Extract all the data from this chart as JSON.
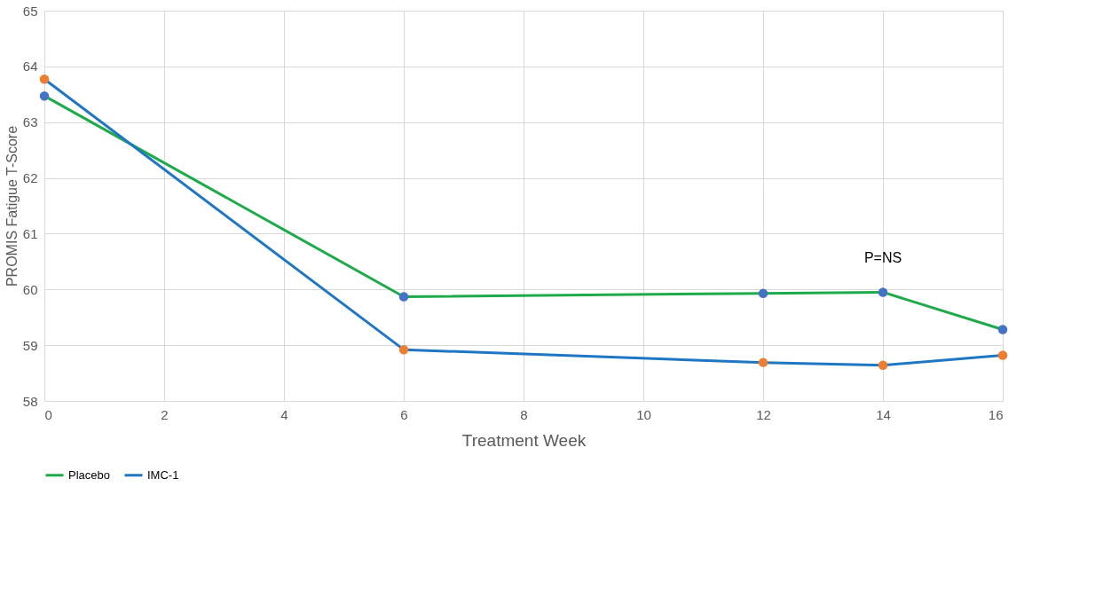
{
  "chart_data": {
    "type": "line",
    "xlabel": "Treatment Week",
    "ylabel": "PROMIS Fatigue T-Score",
    "x": [
      0,
      6,
      12,
      14,
      16
    ],
    "series": [
      {
        "name": "Placebo",
        "color": "#1faa4a",
        "colors": [
          "#4472c4",
          "#4472c4",
          "#4472c4",
          "#4472c4",
          "#4472c4"
        ],
        "values": [
          63.47,
          59.87,
          59.93,
          59.95,
          59.28
        ]
      },
      {
        "name": "IMC-1",
        "color": "#1f77c4",
        "colors": [
          "#ed7d31",
          "#ed7d31",
          "#ed7d31",
          "#ed7d31",
          "#ed7d31"
        ],
        "values": [
          63.77,
          58.92,
          58.69,
          58.64,
          58.82
        ]
      }
    ],
    "xlim": [
      0,
      16
    ],
    "xticks": [
      0,
      2,
      4,
      6,
      8,
      10,
      12,
      14,
      16
    ],
    "ylim": [
      58,
      65
    ],
    "yticks": [
      58,
      59,
      60,
      61,
      62,
      63,
      64,
      65
    ],
    "annotations": [
      "P=NS"
    ],
    "grid": true,
    "legend": "bottom",
    "marker": "circle",
    "line_style": "solid"
  }
}
